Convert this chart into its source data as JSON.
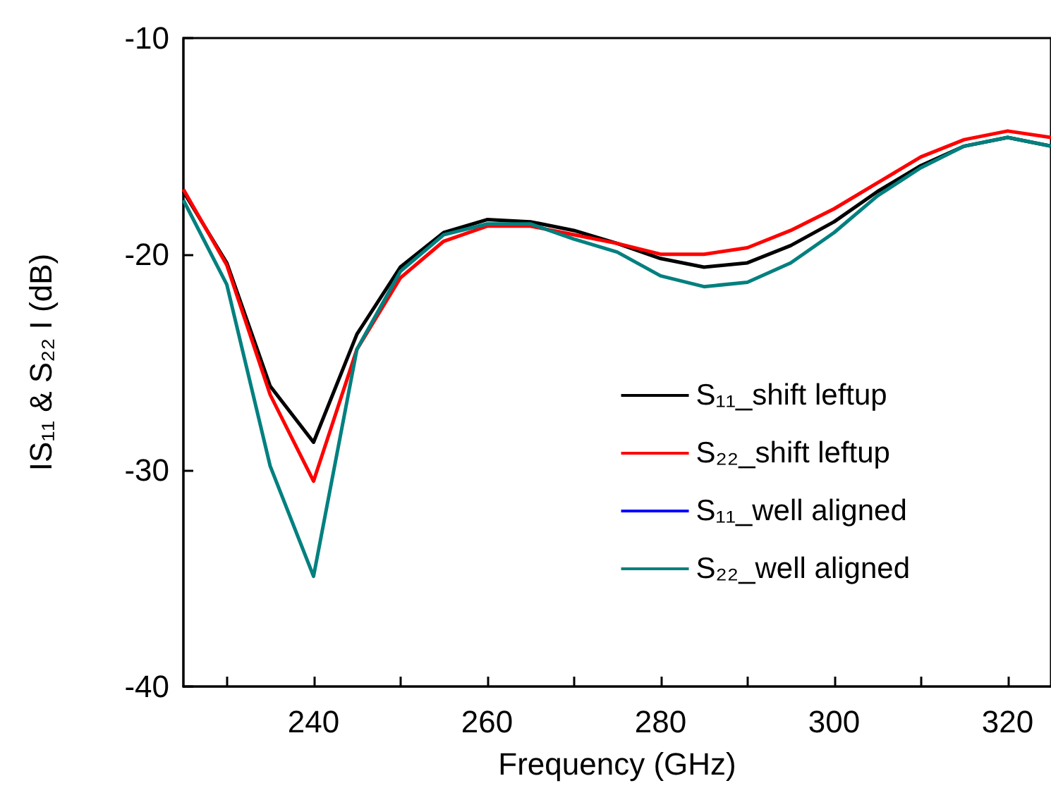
{
  "chart_data": {
    "type": "line",
    "xlabel": "Frequency (GHz)",
    "ylabel": "IS₁₁ & S₂₂ I (dB)",
    "x": [
      225,
      230,
      235,
      240,
      245,
      250,
      255,
      260,
      265,
      270,
      275,
      280,
      285,
      290,
      295,
      300,
      305,
      310,
      315,
      320,
      325
    ],
    "series": [
      {
        "name": "S₁₁_shift leftup",
        "color": "#000000",
        "values": [
          -17.1,
          -20.4,
          -26.1,
          -28.7,
          -23.7,
          -20.6,
          -19.0,
          -18.4,
          -18.5,
          -18.9,
          -19.5,
          -20.2,
          -20.6,
          -20.4,
          -19.6,
          -18.5,
          -17.1,
          -15.9,
          -15.0,
          -14.6,
          -15.0
        ]
      },
      {
        "name": "S₂₂_shift leftup",
        "color": "#ff0000",
        "values": [
          -17.0,
          -20.5,
          -26.5,
          -30.5,
          -24.4,
          -21.1,
          -19.4,
          -18.7,
          -18.7,
          -19.1,
          -19.5,
          -20.0,
          -20.0,
          -19.7,
          -18.9,
          -17.9,
          -16.7,
          -15.5,
          -14.7,
          -14.3,
          -14.6
        ]
      },
      {
        "name": "S₁₁_well aligned",
        "color": "#0000ff",
        "values": [
          null,
          null,
          null,
          null,
          null,
          null,
          null,
          null,
          null,
          null,
          null,
          null,
          null,
          null,
          null,
          null,
          null,
          null,
          null,
          null,
          null
        ]
      },
      {
        "name": "S₂₂_well aligned",
        "color": "#00807f",
        "values": [
          -17.5,
          -21.4,
          -29.8,
          -34.9,
          -24.4,
          -20.8,
          -19.1,
          -18.6,
          -18.6,
          -19.3,
          -19.9,
          -21.0,
          -21.5,
          -21.3,
          -20.4,
          -19.0,
          -17.3,
          -16.0,
          -15.0,
          -14.6,
          -15.0
        ]
      }
    ],
    "xlim": [
      225,
      325
    ],
    "xticks": [
      {
        "value": 230,
        "label": null
      },
      240,
      {
        "value": 250,
        "label": null
      },
      260,
      {
        "value": 270,
        "label": null
      },
      280,
      {
        "value": 290,
        "label": null
      },
      300,
      {
        "value": 310,
        "label": null
      },
      320
    ],
    "ylim": [
      -40,
      -10
    ],
    "yticks": [
      -40,
      -30,
      -20,
      -10
    ],
    "grid": false,
    "legend": "right",
    "marker": "none",
    "line_style": "solid"
  }
}
